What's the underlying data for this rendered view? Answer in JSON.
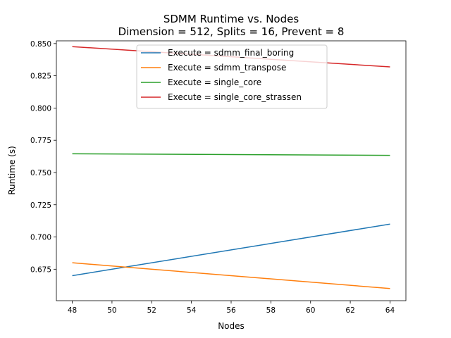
{
  "chart_data": {
    "type": "line",
    "title": "SDMM Runtime vs. Nodes",
    "subtitle": "Dimension = 512, Splits = 16, Prevent = 8",
    "xlabel": "Nodes",
    "ylabel": "Runtime (s)",
    "xlim": [
      47.2,
      64.8
    ],
    "ylim": [
      0.6506,
      0.8521
    ],
    "xticks": [
      48,
      50,
      52,
      54,
      56,
      58,
      60,
      62,
      64
    ],
    "yticks": [
      0.675,
      0.7,
      0.725,
      0.75,
      0.775,
      0.8,
      0.825,
      0.85
    ],
    "ytick_labels": [
      "0.675",
      "0.700",
      "0.725",
      "0.750",
      "0.775",
      "0.800",
      "0.825",
      "0.850"
    ],
    "grid": false,
    "legend_position": "upper center",
    "x": [
      48,
      64
    ],
    "series": [
      {
        "name": "Execute = sdmm_final_boring",
        "color": "#1f77b4",
        "values": [
          0.67,
          0.71
        ]
      },
      {
        "name": "Execute = sdmm_transpose",
        "color": "#ff7f0e",
        "values": [
          0.68,
          0.66
        ]
      },
      {
        "name": "Execute = single_core",
        "color": "#2ca02c",
        "values": [
          0.7645,
          0.7633
        ]
      },
      {
        "name": "Execute = single_core_strassen",
        "color": "#d62728",
        "values": [
          0.8476,
          0.8319
        ]
      }
    ]
  }
}
